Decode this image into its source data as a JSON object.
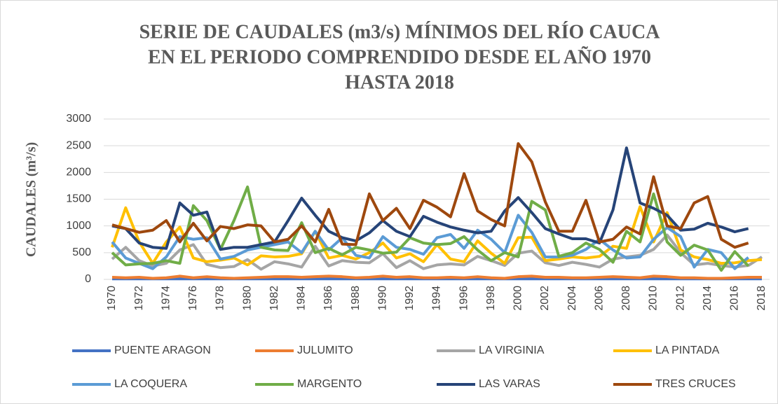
{
  "chart_data": {
    "type": "line",
    "title": [
      "SERIE DE CAUDALES (m3/s) MÍNIMOS DEL RÍO CAUCA",
      "EN EL PERIODO COMPRENDIDO DESDE EL AÑO 1970",
      "HASTA 2018"
    ],
    "y_label": "CAUDALES (m³/s)",
    "x": [
      1970,
      1971,
      1972,
      1973,
      1974,
      1975,
      1976,
      1977,
      1978,
      1979,
      1980,
      1981,
      1982,
      1983,
      1984,
      1985,
      1986,
      1987,
      1988,
      1989,
      1990,
      1991,
      1992,
      1993,
      1994,
      1995,
      1996,
      1997,
      1998,
      1999,
      2000,
      2001,
      2002,
      2003,
      2004,
      2005,
      2006,
      2007,
      2008,
      2009,
      2010,
      2011,
      2012,
      2013,
      2014,
      2015,
      2016,
      2017,
      2018
    ],
    "xlim": [
      1970,
      2018
    ],
    "xticks": [
      1970,
      1972,
      1974,
      1976,
      1978,
      1980,
      1982,
      1984,
      1986,
      1988,
      1990,
      1992,
      1994,
      1996,
      1998,
      2000,
      2002,
      2004,
      2006,
      2008,
      2010,
      2012,
      2014,
      2016,
      2018
    ],
    "ylim": [
      0,
      3000
    ],
    "yticks": [
      0,
      500,
      1000,
      1500,
      2000,
      2500,
      3000
    ],
    "grid": true,
    "legend": "bottom",
    "series": [
      {
        "name": "PUENTE ARAGON",
        "color": "#4472c4",
        "values": [
          10,
          10,
          10,
          10,
          10,
          10,
          10,
          10,
          10,
          10,
          10,
          10,
          10,
          10,
          10,
          10,
          10,
          10,
          10,
          10,
          10,
          10,
          10,
          10,
          10,
          10,
          10,
          10,
          10,
          10,
          10,
          10,
          10,
          10,
          10,
          10,
          10,
          10,
          10,
          10,
          10,
          10,
          10,
          10,
          10,
          10,
          10,
          10,
          10
        ]
      },
      {
        "name": "JULUMITO",
        "color": "#ed7d31",
        "values": [
          40,
          30,
          40,
          20,
          30,
          60,
          30,
          50,
          30,
          20,
          30,
          40,
          50,
          50,
          40,
          50,
          60,
          50,
          30,
          40,
          60,
          40,
          50,
          30,
          30,
          40,
          30,
          50,
          30,
          20,
          50,
          60,
          40,
          40,
          30,
          30,
          40,
          50,
          40,
          30,
          60,
          50,
          30,
          30,
          20,
          20,
          30,
          40,
          40
        ]
      },
      {
        "name": "LA VIRGINIA",
        "color": "#a5a5a5",
        "values": [
          380,
          600,
          350,
          250,
          300,
          550,
          650,
          280,
          220,
          240,
          370,
          190,
          330,
          290,
          230,
          620,
          250,
          350,
          320,
          310,
          480,
          220,
          350,
          200,
          270,
          290,
          270,
          430,
          350,
          260,
          490,
          530,
          310,
          260,
          320,
          280,
          230,
          380,
          420,
          450,
          560,
          830,
          500,
          270,
          300,
          260,
          230,
          260,
          420
        ]
      },
      {
        "name": "LA PINTADA",
        "color": "#ffc000",
        "values": [
          600,
          1340,
          700,
          300,
          700,
          980,
          400,
          330,
          360,
          400,
          270,
          440,
          420,
          430,
          480,
          900,
          400,
          450,
          380,
          500,
          680,
          400,
          480,
          330,
          650,
          380,
          330,
          720,
          490,
          300,
          780,
          790,
          350,
          380,
          420,
          400,
          430,
          620,
          580,
          1360,
          700,
          1250,
          550,
          420,
          370,
          300,
          310,
          350,
          370
        ]
      },
      {
        "name": "LA COQUERA",
        "color": "#5b9bd5",
        "values": [
          700,
          400,
          300,
          200,
          420,
          800,
          750,
          780,
          380,
          430,
          550,
          600,
          650,
          700,
          500,
          900,
          550,
          780,
          450,
          400,
          800,
          600,
          560,
          470,
          780,
          840,
          580,
          920,
          750,
          500,
          1200,
          880,
          420,
          420,
          450,
          560,
          750,
          550,
          400,
          420,
          750,
          970,
          800,
          230,
          560,
          500,
          200,
          410,
          null
        ]
      },
      {
        "name": "MARGENTO",
        "color": "#70ad47",
        "values": [
          500,
          270,
          290,
          300,
          350,
          300,
          1380,
          1100,
          560,
          1100,
          1730,
          600,
          550,
          540,
          1060,
          500,
          580,
          460,
          600,
          550,
          490,
          510,
          780,
          680,
          650,
          670,
          800,
          550,
          350,
          500,
          420,
          1460,
          1300,
          430,
          500,
          680,
          560,
          320,
          900,
          700,
          1600,
          700,
          450,
          640,
          550,
          170,
          520,
          250,
          null
        ]
      },
      {
        "name": "LAS VARAS",
        "color": "#264478",
        "values": [
          1000,
          950,
          680,
          600,
          580,
          1430,
          1200,
          1260,
          560,
          600,
          600,
          650,
          700,
          1100,
          1520,
          1200,
          900,
          780,
          720,
          870,
          1100,
          900,
          800,
          1180,
          1070,
          980,
          920,
          870,
          900,
          1280,
          1530,
          1250,
          950,
          850,
          760,
          760,
          680,
          1300,
          2460,
          1430,
          1330,
          1200,
          920,
          940,
          1050,
          980,
          890,
          950,
          null
        ]
      },
      {
        "name": "TRES CRUCES",
        "color": "#9e480e",
        "values": [
          1020,
          950,
          880,
          920,
          1100,
          700,
          1050,
          720,
          990,
          950,
          1020,
          1000,
          700,
          750,
          1000,
          700,
          1310,
          660,
          650,
          1600,
          1100,
          1330,
          950,
          1480,
          1350,
          1170,
          1980,
          1280,
          1120,
          1000,
          2540,
          2200,
          1450,
          900,
          900,
          1480,
          700,
          750,
          980,
          850,
          1920,
          1000,
          950,
          1430,
          1550,
          750,
          600,
          680,
          null
        ]
      }
    ]
  }
}
